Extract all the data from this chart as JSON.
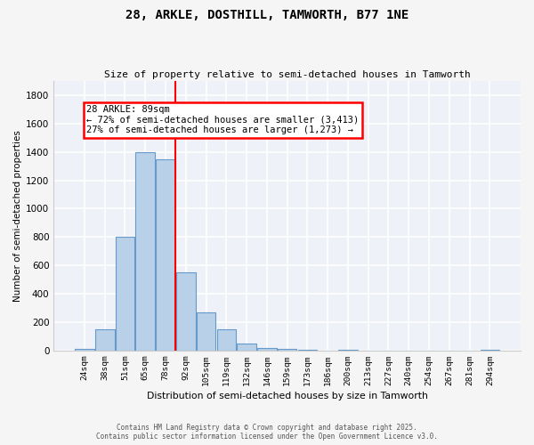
{
  "title": "28, ARKLE, DOSTHILL, TAMWORTH, B77 1NE",
  "subtitle": "Size of property relative to semi-detached houses in Tamworth",
  "xlabel": "Distribution of semi-detached houses by size in Tamworth",
  "ylabel": "Number of semi-detached properties",
  "categories": [
    "24sqm",
    "38sqm",
    "51sqm",
    "65sqm",
    "78sqm",
    "92sqm",
    "105sqm",
    "119sqm",
    "132sqm",
    "146sqm",
    "159sqm",
    "173sqm",
    "186sqm",
    "200sqm",
    "213sqm",
    "227sqm",
    "240sqm",
    "254sqm",
    "267sqm",
    "281sqm",
    "294sqm"
  ],
  "values": [
    10,
    150,
    800,
    1400,
    1350,
    550,
    265,
    150,
    50,
    20,
    10,
    5,
    0,
    5,
    0,
    0,
    0,
    0,
    0,
    0,
    5
  ],
  "bar_color": "#b8d0e8",
  "bar_edge_color": "#6699cc",
  "red_line_x": 4.5,
  "red_line_label": "28 ARKLE: 89sqm",
  "annotation_line1": "← 72% of semi-detached houses are smaller (3,413)",
  "annotation_line2": "27% of semi-detached houses are larger (1,273) →",
  "ylim": [
    0,
    1900
  ],
  "yticks": [
    0,
    200,
    400,
    600,
    800,
    1000,
    1200,
    1400,
    1600,
    1800
  ],
  "background_color": "#eef2f8",
  "grid_color": "#ffffff",
  "footer_line1": "Contains HM Land Registry data © Crown copyright and database right 2025.",
  "footer_line2": "Contains public sector information licensed under the Open Government Licence v3.0.",
  "fig_facecolor": "#f5f5f5"
}
